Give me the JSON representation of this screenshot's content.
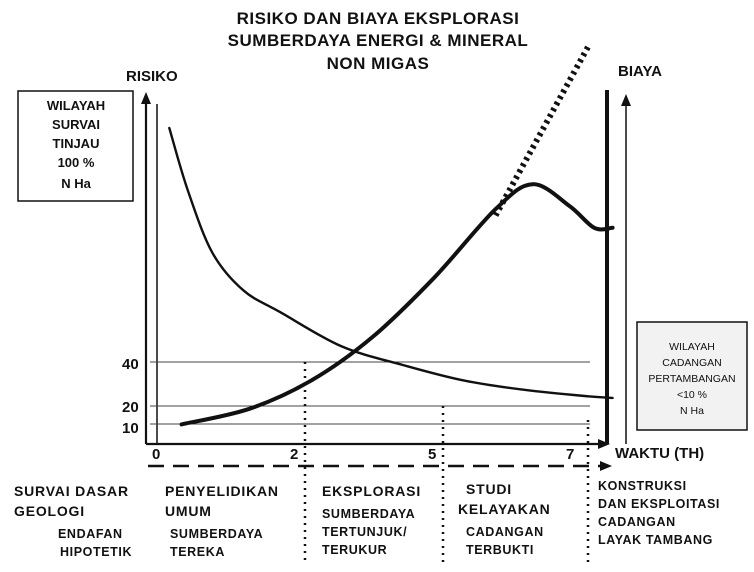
{
  "title_lines": [
    "RISIKO DAN BIAYA EKSPLORASI",
    "SUMBERDAYA ENERGI & MINERAL",
    "NON MIGAS"
  ],
  "left_axis_label": "RISIKO",
  "right_axis_label": "BIAYA",
  "x_axis_label": "WAKTU (TH)",
  "left_box_lines": [
    "WILAYAH",
    "SURVAI",
    "TINJAU",
    "100 %",
    "N Ha"
  ],
  "right_box_lines": [
    "WILAYAH",
    "CADANGAN",
    "PERTAMBANGAN",
    "<10 %",
    "N Ha"
  ],
  "y_ticks": [
    "40",
    "20",
    "10"
  ],
  "x_ticks": [
    "0",
    "2",
    "5",
    "7"
  ],
  "stages": [
    {
      "title": [
        "SURVAI DASAR",
        "GEOLOGI"
      ],
      "sub": [
        "ENDAFAN",
        "HIPOTETIK"
      ]
    },
    {
      "title": [
        "PENYELIDIKAN",
        "UMUM"
      ],
      "sub": [
        "SUMBERDAYA",
        "TEREKA"
      ]
    },
    {
      "title": [
        "EKSPLORASI"
      ],
      "sub": [
        "SUMBERDAYA",
        "TERTUNJUK/",
        "TERUKUR"
      ]
    },
    {
      "title": [
        "STUDI",
        "KELAYAKAN"
      ],
      "sub": [
        "CADANGAN",
        "TERBUKTI"
      ]
    },
    {
      "title": [
        "KONSTRUKSI",
        "DAN EKSPLOITASI",
        "CADANGAN",
        "LAYAK TAMBANG"
      ],
      "sub": []
    }
  ],
  "chart_data": {
    "type": "line",
    "xlabel": "WAKTU (TH)",
    "ylabel": "RISIKO",
    "y2label": "BIAYA",
    "xlim": [
      0,
      8
    ],
    "ylim": [
      0,
      100
    ],
    "x_ticks": [
      0,
      2,
      5,
      7
    ],
    "y_ticks": [
      10,
      20,
      40
    ],
    "grid": false,
    "series": [
      {
        "axis": "left",
        "style": "solid",
        "points": [
          [
            0.2,
            100
          ],
          [
            0.5,
            80
          ],
          [
            0.9,
            60
          ],
          [
            1.4,
            48
          ],
          [
            2,
            41
          ],
          [
            3,
            30
          ],
          [
            4,
            24
          ],
          [
            5,
            19
          ],
          [
            6,
            16
          ],
          [
            7,
            14
          ],
          [
            7.4,
            13.5
          ]
        ]
      },
      {
        "axis": "right",
        "style": "solid",
        "points": [
          [
            0.4,
            5
          ],
          [
            1.5,
            10
          ],
          [
            2.5,
            19
          ],
          [
            3.5,
            33
          ],
          [
            4.5,
            52
          ],
          [
            5.5,
            74
          ],
          [
            6.1,
            82
          ],
          [
            6.7,
            75
          ],
          [
            7.1,
            68
          ],
          [
            7.4,
            68
          ]
        ]
      },
      {
        "axis": "right",
        "style": "dotted",
        "points": [
          [
            5.5,
            72
          ],
          [
            7.0,
            126
          ]
        ]
      }
    ]
  }
}
